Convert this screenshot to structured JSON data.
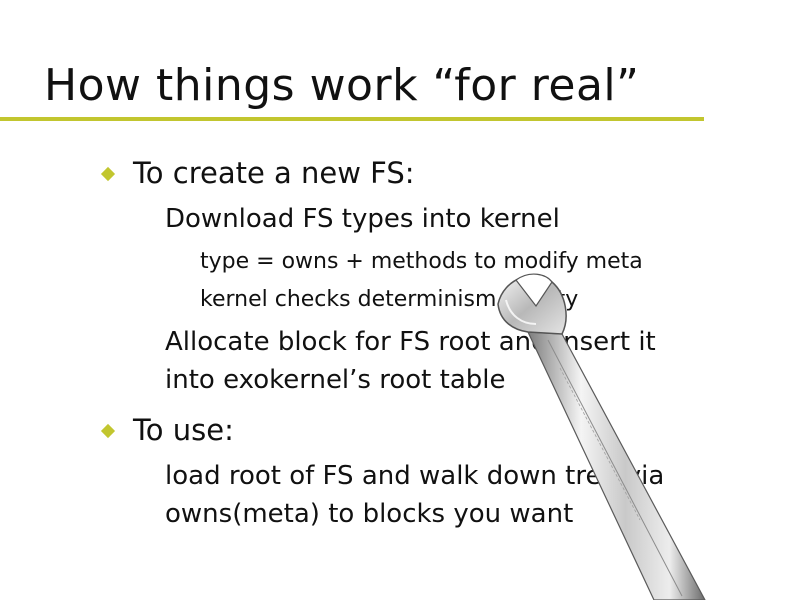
{
  "slide": {
    "title": "How things work “for real”",
    "accent_color": "#c2c62f",
    "bullet_color": "#c2c62f",
    "items": [
      {
        "text": "To create a new FS:"
      },
      {
        "text": "Download FS types into kernel"
      },
      {
        "text": "type = owns + methods to modify meta"
      },
      {
        "text": "kernel checks determinism, safety"
      },
      {
        "text": "Allocate block for FS root and insert it"
      },
      {
        "text": "into exokernel’s root table"
      },
      {
        "text": "To use:"
      },
      {
        "text": "load root of FS and walk down tree via"
      },
      {
        "text": "owns(meta) to blocks you want"
      }
    ],
    "decoration": {
      "icon": "wrench-icon"
    }
  }
}
